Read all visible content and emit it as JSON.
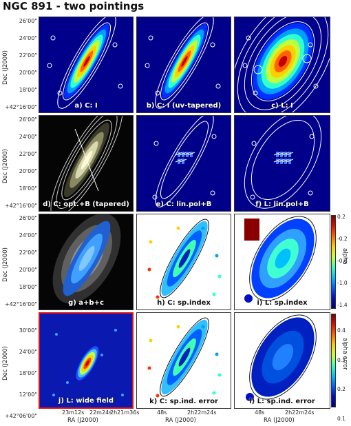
{
  "figure": {
    "title": "NGC 891 - two pointings"
  },
  "panels": [
    {
      "id": "a",
      "label": "a) C: I",
      "style": "jet",
      "ellipse": "thin"
    },
    {
      "id": "b",
      "label": "b) C: I (uv-tapered)",
      "style": "jet",
      "ellipse": "thin"
    },
    {
      "id": "c",
      "label": "c) L: I",
      "style": "jet",
      "ellipse": "fat"
    },
    {
      "id": "d",
      "label": "d) C: opt.+B (tapered)",
      "style": "optical",
      "ellipse": "thin"
    },
    {
      "id": "e",
      "label": "e) C: lin.pol+B",
      "style": "polnavy",
      "ellipse": "thin"
    },
    {
      "id": "f",
      "label": "f) L: lin.pol+B",
      "style": "polnavy",
      "ellipse": "fat"
    },
    {
      "id": "g",
      "label": "g) a+b+c",
      "style": "composite",
      "ellipse": "thin"
    },
    {
      "id": "h",
      "label": "h) C: sp.index",
      "style": "spindex",
      "ellipse": "thin"
    },
    {
      "id": "i",
      "label": "i) L: sp.index",
      "style": "spindexL",
      "ellipse": "fat"
    },
    {
      "id": "j",
      "label": "j) L: wide field",
      "style": "wide",
      "ellipse": "thin"
    },
    {
      "id": "k",
      "label": "k) C: sp.ind. error",
      "style": "spindex",
      "ellipse": "thin"
    },
    {
      "id": "l",
      "label": "l) L: sp.ind. error",
      "style": "errorL",
      "ellipse": "fat"
    }
  ],
  "axes": {
    "ylabel": "Dec (J2000)",
    "xlabel": "RA (J2000)",
    "dec_ticks_rows_1_3": [
      "26'00\"",
      "24'00\"",
      "22'00\"",
      "20'00\"",
      "18'00\"",
      "+42°16'00\""
    ],
    "dec_ticks_row_4": [
      "30'00\"",
      "24'00\"",
      "18'00\"",
      "12'00\"",
      "+42°06'00\""
    ],
    "ra_ticks_col_1": [
      "23m12s",
      "22m24s",
      "2h21m36s"
    ],
    "ra_ticks_col_2": [
      "48s",
      "2h22m24s"
    ],
    "ra_ticks_col_3": [
      "48s",
      "2h22m24s"
    ]
  },
  "colorbars": [
    {
      "name": "alpha",
      "ticks": [
        "0.2",
        "-0.2",
        "-0.6",
        "-1.0",
        "-1.4"
      ]
    },
    {
      "name": "alpha error",
      "ticks": [
        "0.4",
        "0.3",
        "0.2",
        "0.1"
      ]
    }
  ]
}
